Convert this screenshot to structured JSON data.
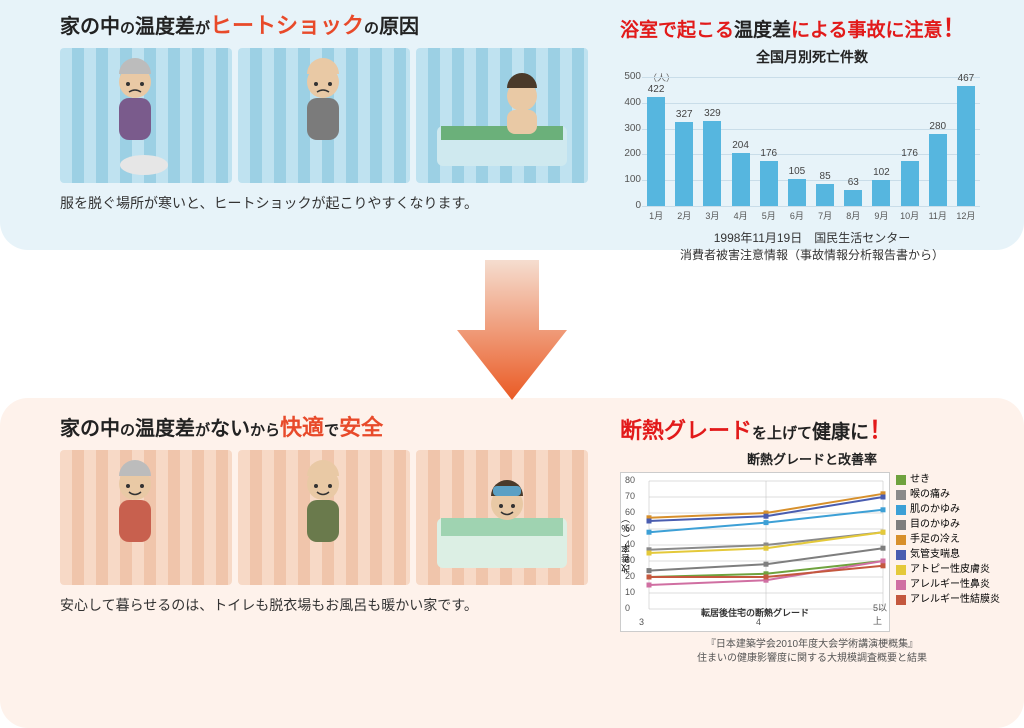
{
  "top": {
    "bg_color": "#e7f3f9",
    "title_plain1": "家の中",
    "title_small1": "の",
    "title_plain2": "温度差",
    "title_small2": "が",
    "title_em": "ヒートショック",
    "title_small3": "の",
    "title_plain3": "原因",
    "title_color": "#222222",
    "title_em_color": "#e84a2a",
    "caption": "服を脱ぐ場所が寒いと、ヒートショックが起こりやすくなります。",
    "illus_colors": {
      "wavy_bg_light": "#bfe2f0",
      "wavy_bg_dark": "#9cd0e4",
      "person_tone": "#e9c9a5",
      "hair_gray": "#bcbcbc",
      "hair_brown": "#4a3a2a",
      "clothes1": "#7a5b8c",
      "clothes2": "#7b7b7b",
      "tub": "#cfe9ef",
      "water": "#6bb07a",
      "toilet": "#e6e6e6"
    }
  },
  "bottom": {
    "bg_color": "#fef2eb",
    "title_plain1": "家の中",
    "title_small1": "の",
    "title_plain2": "温度差",
    "title_small2": "が",
    "title_plain3": "ない",
    "title_small3": "から",
    "title_em": "快適",
    "title_small4": "で",
    "title_em2": "安全",
    "title_color": "#222222",
    "title_em_color": "#e84a2a",
    "caption": "安心して暮らせるのは、トイレも脱衣場もお風呂も暖かい家です。",
    "illus_colors": {
      "wavy_bg_light": "#f7d9c6",
      "wavy_bg_dark": "#f0c5ab",
      "clothes1": "#c8604e",
      "clothes2": "#6a7a4c",
      "tub": "#dcefe4",
      "water": "#9fd3b1",
      "towel": "#5aa0c4"
    }
  },
  "arrow": {
    "gradient_top": "#f5ddcf",
    "gradient_bottom": "#ea5a24"
  },
  "bar_chart": {
    "type": "bar",
    "heading_plain": "浴室で起こる",
    "heading_black": "温度差",
    "heading_tail": "による事故に注意",
    "heading_bang": "！",
    "heading_color1": "#e21a1a",
    "heading_color_black": "#222222",
    "title": "全国月別死亡件数",
    "unit": "（人）",
    "categories": [
      "1月",
      "2月",
      "3月",
      "4月",
      "5月",
      "6月",
      "7月",
      "8月",
      "9月",
      "10月",
      "11月",
      "12月"
    ],
    "values": [
      422,
      327,
      329,
      204,
      176,
      105,
      85,
      63,
      102,
      176,
      280,
      467
    ],
    "bar_color": "#56b6df",
    "ylim": [
      0,
      500
    ],
    "ytick_step": 100,
    "background": "#e7f3f9",
    "grid_color": "#c9dde9",
    "value_fontsize": 10,
    "source_line1": "1998年11月19日　国民生活センター",
    "source_line2": "消費者被害注意情報（事故情報分析報告書から）"
  },
  "line_chart": {
    "type": "line",
    "heading_em": "断熱グレード",
    "heading_tail1": "を上げて",
    "heading_tail2": "健康に",
    "heading_bang": "！",
    "heading_em_color": "#e21a1a",
    "heading_tail_color": "#222222",
    "title": "断熱グレードと改善率",
    "yaxis_title": "改善率（％）",
    "xaxis_title": "転居後住宅の断熱グレード",
    "xlabels": [
      "3",
      "4",
      "5以上"
    ],
    "ylim": [
      0,
      80
    ],
    "ytick_step": 10,
    "grid_color": "#bcbcbc",
    "background": "#ffffff",
    "series": [
      {
        "name": "せき",
        "color": "#6fa23e",
        "values": [
          20,
          22,
          30
        ]
      },
      {
        "name": "喉の痛み",
        "color": "#8a8a8a",
        "values": [
          37,
          40,
          48
        ]
      },
      {
        "name": "肌のかゆみ",
        "color": "#3da0d6",
        "values": [
          48,
          54,
          62
        ]
      },
      {
        "name": "目のかゆみ",
        "color": "#7e7e7e",
        "values": [
          24,
          28,
          38
        ]
      },
      {
        "name": "手足の冷え",
        "color": "#d7902c",
        "values": [
          57,
          60,
          72
        ]
      },
      {
        "name": "気管支喘息",
        "color": "#4a5db0",
        "values": [
          55,
          58,
          70
        ]
      },
      {
        "name": "アトピー性皮膚炎",
        "color": "#e4c93a",
        "values": [
          35,
          38,
          48
        ]
      },
      {
        "name": "アレルギー性鼻炎",
        "color": "#d06fa2",
        "values": [
          15,
          18,
          30
        ]
      },
      {
        "name": "アレルギー性結膜炎",
        "color": "#c4583e",
        "values": [
          20,
          20,
          27
        ]
      }
    ],
    "source_line1": "『日本建築学会2010年度大会学術講演梗概集』",
    "source_line2": "住まいの健康影響度に関する大規模調査概要と結果"
  }
}
